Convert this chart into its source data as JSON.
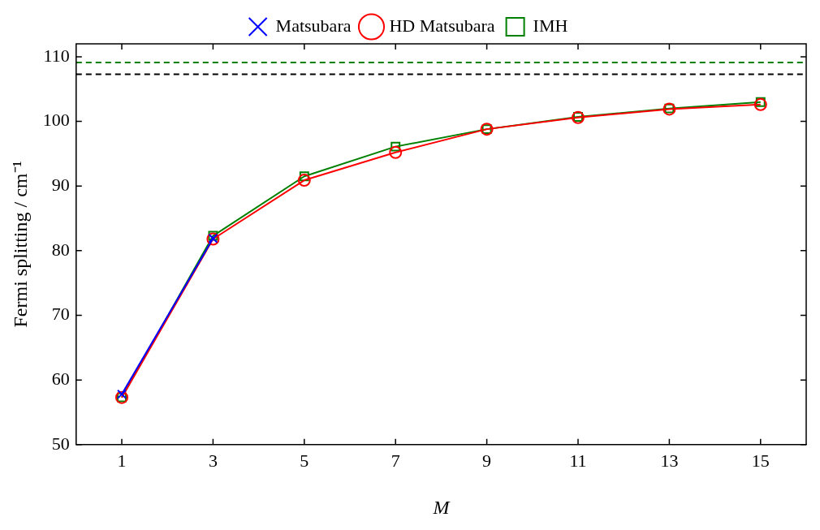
{
  "chart_data": {
    "type": "line",
    "xlabel": "M",
    "ylabel": "Fermi splitting / cm⁻¹",
    "x": [
      1,
      3,
      5,
      7,
      9,
      11,
      13,
      15
    ],
    "series": [
      {
        "name": "Matsubara",
        "color": "#0000ff",
        "marker": "cross",
        "values": [
          57.8,
          81.9,
          null,
          null,
          null,
          null,
          null,
          null
        ]
      },
      {
        "name": "HD Matsubara",
        "color": "#ff0000",
        "marker": "circle",
        "values": [
          57.3,
          81.8,
          90.9,
          95.2,
          98.8,
          100.6,
          101.9,
          102.6
        ]
      },
      {
        "name": "IMH",
        "color": "#008000",
        "marker": "square",
        "values": [
          57.3,
          82.3,
          91.5,
          96.1,
          98.8,
          100.7,
          102.0,
          103.0
        ]
      }
    ],
    "xlim": [
      0,
      16
    ],
    "xticks": [
      1,
      3,
      5,
      7,
      9,
      11,
      13,
      15
    ],
    "ylim": [
      50,
      112
    ],
    "yticks": [
      50,
      60,
      70,
      80,
      90,
      100,
      110
    ],
    "ref_lines": [
      {
        "axis": "y",
        "value": 107.3,
        "color": "#000000",
        "line_style": "dashed"
      },
      {
        "axis": "y",
        "value": 109.1,
        "color": "#008000",
        "line_style": "dashed"
      }
    ],
    "grid": false,
    "legend": "top",
    "line_style": "solid"
  }
}
